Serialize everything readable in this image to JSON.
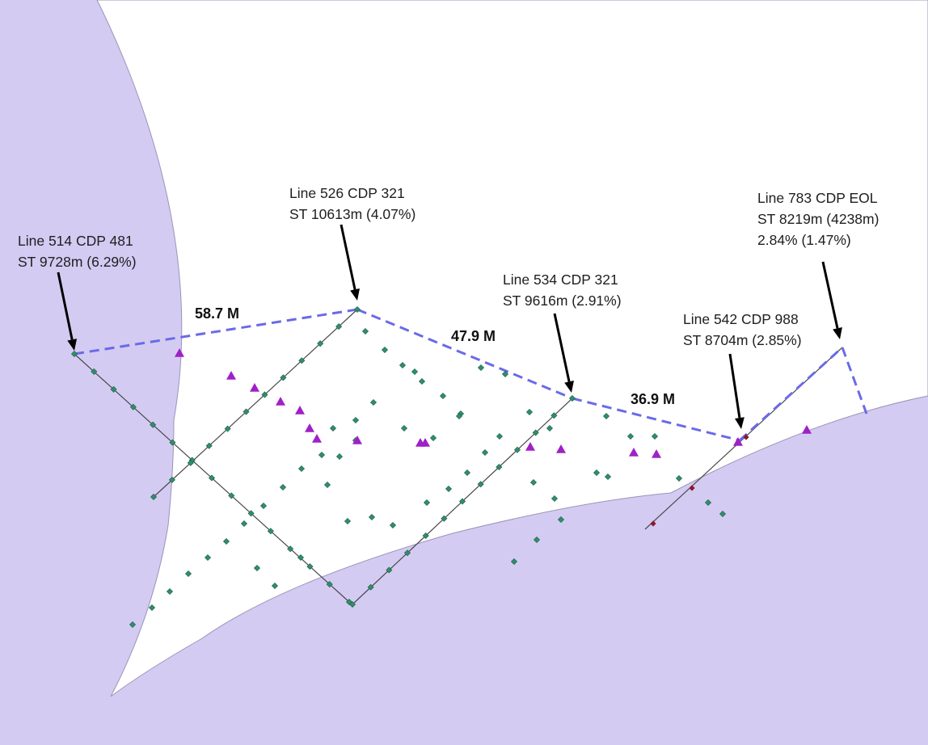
{
  "colors": {
    "water": "#d4cbf3",
    "land": "#ffffff",
    "survey_line": "#4a4a4a",
    "dashed": "#6a6ae8",
    "station_green": "#2f8f6b",
    "station_red": "#8b1a2a",
    "triangle": "#a020c8",
    "arrow": "#000000"
  },
  "callouts": [
    {
      "id": "514",
      "lines": [
        "Line 514 CDP 481",
        "ST 9728m (6.29%)"
      ]
    },
    {
      "id": "526",
      "lines": [
        "Line 526 CDP 321",
        "ST 10613m (4.07%)"
      ]
    },
    {
      "id": "534",
      "lines": [
        "Line 534 CDP 321",
        "ST 9616m (2.91%)"
      ]
    },
    {
      "id": "542",
      "lines": [
        "Line 542 CDP 988",
        "ST 8704m (2.85%)"
      ]
    },
    {
      "id": "783",
      "lines": [
        "Line 783 CDP EOL",
        "ST 8219m (4238m)",
        "2.84% (1.47%)"
      ]
    }
  ],
  "distances": [
    "58.7 M",
    "47.9 M",
    "36.9 M"
  ]
}
